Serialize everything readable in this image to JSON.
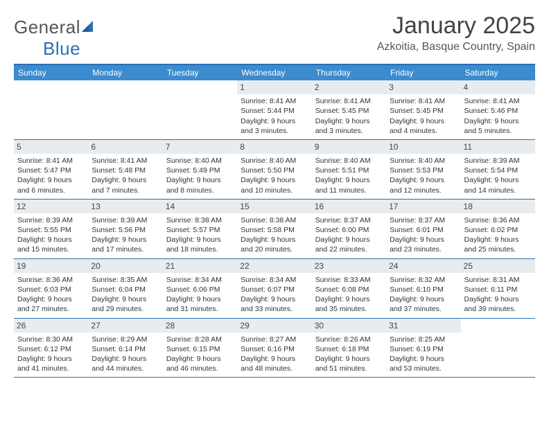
{
  "logo": {
    "word1": "General",
    "word2": "Blue"
  },
  "header": {
    "month_title": "January 2025",
    "location": "Azkoitia, Basque Country, Spain"
  },
  "colors": {
    "header_bar": "#3b8bce",
    "rule": "#2a6fb5",
    "daynum_bg": "#e8ecef",
    "text": "#333333",
    "logo_gray": "#555555",
    "logo_blue": "#2a6fb5"
  },
  "day_names": [
    "Sunday",
    "Monday",
    "Tuesday",
    "Wednesday",
    "Thursday",
    "Friday",
    "Saturday"
  ],
  "labels": {
    "sunrise": "Sunrise:",
    "sunset": "Sunset:",
    "daylight": "Daylight:"
  },
  "weeks": [
    [
      null,
      null,
      null,
      {
        "n": "1",
        "sr": "8:41 AM",
        "ss": "5:44 PM",
        "dl": "9 hours and 3 minutes."
      },
      {
        "n": "2",
        "sr": "8:41 AM",
        "ss": "5:45 PM",
        "dl": "9 hours and 3 minutes."
      },
      {
        "n": "3",
        "sr": "8:41 AM",
        "ss": "5:45 PM",
        "dl": "9 hours and 4 minutes."
      },
      {
        "n": "4",
        "sr": "8:41 AM",
        "ss": "5:46 PM",
        "dl": "9 hours and 5 minutes."
      }
    ],
    [
      {
        "n": "5",
        "sr": "8:41 AM",
        "ss": "5:47 PM",
        "dl": "9 hours and 6 minutes."
      },
      {
        "n": "6",
        "sr": "8:41 AM",
        "ss": "5:48 PM",
        "dl": "9 hours and 7 minutes."
      },
      {
        "n": "7",
        "sr": "8:40 AM",
        "ss": "5:49 PM",
        "dl": "9 hours and 8 minutes."
      },
      {
        "n": "8",
        "sr": "8:40 AM",
        "ss": "5:50 PM",
        "dl": "9 hours and 10 minutes."
      },
      {
        "n": "9",
        "sr": "8:40 AM",
        "ss": "5:51 PM",
        "dl": "9 hours and 11 minutes."
      },
      {
        "n": "10",
        "sr": "8:40 AM",
        "ss": "5:53 PM",
        "dl": "9 hours and 12 minutes."
      },
      {
        "n": "11",
        "sr": "8:39 AM",
        "ss": "5:54 PM",
        "dl": "9 hours and 14 minutes."
      }
    ],
    [
      {
        "n": "12",
        "sr": "8:39 AM",
        "ss": "5:55 PM",
        "dl": "9 hours and 15 minutes."
      },
      {
        "n": "13",
        "sr": "8:39 AM",
        "ss": "5:56 PM",
        "dl": "9 hours and 17 minutes."
      },
      {
        "n": "14",
        "sr": "8:38 AM",
        "ss": "5:57 PM",
        "dl": "9 hours and 18 minutes."
      },
      {
        "n": "15",
        "sr": "8:38 AM",
        "ss": "5:58 PM",
        "dl": "9 hours and 20 minutes."
      },
      {
        "n": "16",
        "sr": "8:37 AM",
        "ss": "6:00 PM",
        "dl": "9 hours and 22 minutes."
      },
      {
        "n": "17",
        "sr": "8:37 AM",
        "ss": "6:01 PM",
        "dl": "9 hours and 23 minutes."
      },
      {
        "n": "18",
        "sr": "8:36 AM",
        "ss": "6:02 PM",
        "dl": "9 hours and 25 minutes."
      }
    ],
    [
      {
        "n": "19",
        "sr": "8:36 AM",
        "ss": "6:03 PM",
        "dl": "9 hours and 27 minutes."
      },
      {
        "n": "20",
        "sr": "8:35 AM",
        "ss": "6:04 PM",
        "dl": "9 hours and 29 minutes."
      },
      {
        "n": "21",
        "sr": "8:34 AM",
        "ss": "6:06 PM",
        "dl": "9 hours and 31 minutes."
      },
      {
        "n": "22",
        "sr": "8:34 AM",
        "ss": "6:07 PM",
        "dl": "9 hours and 33 minutes."
      },
      {
        "n": "23",
        "sr": "8:33 AM",
        "ss": "6:08 PM",
        "dl": "9 hours and 35 minutes."
      },
      {
        "n": "24",
        "sr": "8:32 AM",
        "ss": "6:10 PM",
        "dl": "9 hours and 37 minutes."
      },
      {
        "n": "25",
        "sr": "8:31 AM",
        "ss": "6:11 PM",
        "dl": "9 hours and 39 minutes."
      }
    ],
    [
      {
        "n": "26",
        "sr": "8:30 AM",
        "ss": "6:12 PM",
        "dl": "9 hours and 41 minutes."
      },
      {
        "n": "27",
        "sr": "8:29 AM",
        "ss": "6:14 PM",
        "dl": "9 hours and 44 minutes."
      },
      {
        "n": "28",
        "sr": "8:28 AM",
        "ss": "6:15 PM",
        "dl": "9 hours and 46 minutes."
      },
      {
        "n": "29",
        "sr": "8:27 AM",
        "ss": "6:16 PM",
        "dl": "9 hours and 48 minutes."
      },
      {
        "n": "30",
        "sr": "8:26 AM",
        "ss": "6:18 PM",
        "dl": "9 hours and 51 minutes."
      },
      {
        "n": "31",
        "sr": "8:25 AM",
        "ss": "6:19 PM",
        "dl": "9 hours and 53 minutes."
      },
      null
    ]
  ]
}
